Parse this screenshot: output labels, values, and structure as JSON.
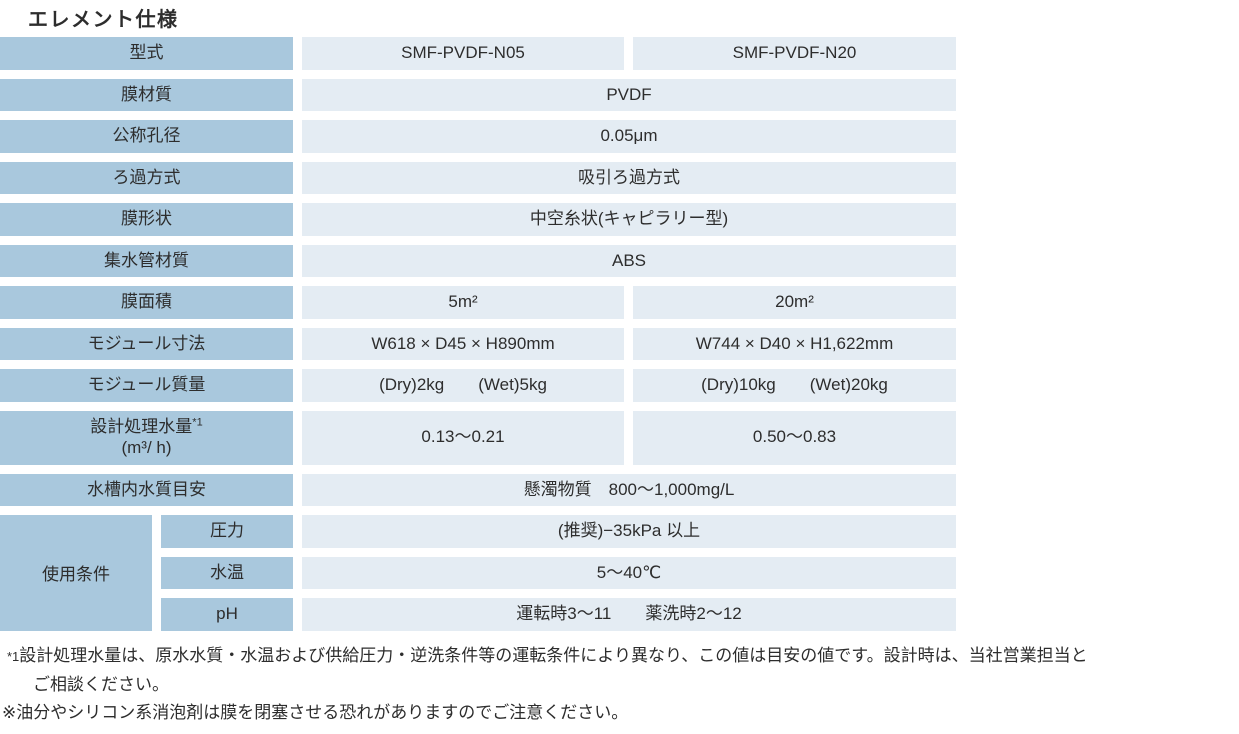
{
  "title": "エレメント仕様",
  "colors": {
    "header_bg": "#a9c8dd",
    "cell_bg": "#e4ecf3",
    "text": "#2d2d2d"
  },
  "table": {
    "rows": [
      {
        "label": "型式",
        "cells": [
          "SMF-PVDF-N05",
          "SMF-PVDF-N20"
        ]
      },
      {
        "label": "膜材質",
        "cells": [
          "PVDF"
        ]
      },
      {
        "label": "公称孔径",
        "cells": [
          "0.05μm"
        ]
      },
      {
        "label": "ろ過方式",
        "cells": [
          "吸引ろ過方式"
        ]
      },
      {
        "label": "膜形状",
        "cells": [
          "中空糸状(キャピラリー型)"
        ]
      },
      {
        "label": "集水管材質",
        "cells": [
          "ABS"
        ]
      },
      {
        "label": "膜面積",
        "cells": [
          "5m²",
          "20m²"
        ]
      },
      {
        "label": "モジュール寸法",
        "cells": [
          "W618 × D45 × H890mm",
          "W744 × D40 × H1,622mm"
        ]
      },
      {
        "label": "モジュール質量",
        "cells": [
          "(Dry)2kg　　(Wet)5kg",
          "(Dry)10kg　　(Wet)20kg"
        ]
      },
      {
        "label": "設計処理水量",
        "label_sup": "*1",
        "label_line2": "(m³/ h)",
        "cells": [
          "0.13〜0.21",
          "0.50〜0.83"
        ]
      },
      {
        "label": "水槽内水質目安",
        "cells": [
          "懸濁物質　800〜1,000mg/L"
        ]
      }
    ],
    "usage": {
      "label": "使用条件",
      "sub": [
        {
          "label": "圧力",
          "value": "(推奨)−35kPa 以上"
        },
        {
          "label": "水温",
          "value": "5〜40℃"
        },
        {
          "label": "pH",
          "value": "運転時3〜11　　薬洗時2〜12"
        }
      ]
    }
  },
  "footnotes": {
    "note1_marker": "*1",
    "note1_line1": "設計処理水量は、原水水質・水温および供給圧力・逆洗条件等の運転条件により異なり、この値は目安の値です。設計時は、当社営業担当と",
    "note1_line2": "ご相談ください。",
    "note2": "※油分やシリコン系消泡剤は膜を閉塞させる恐れがありますのでご注意ください。"
  }
}
